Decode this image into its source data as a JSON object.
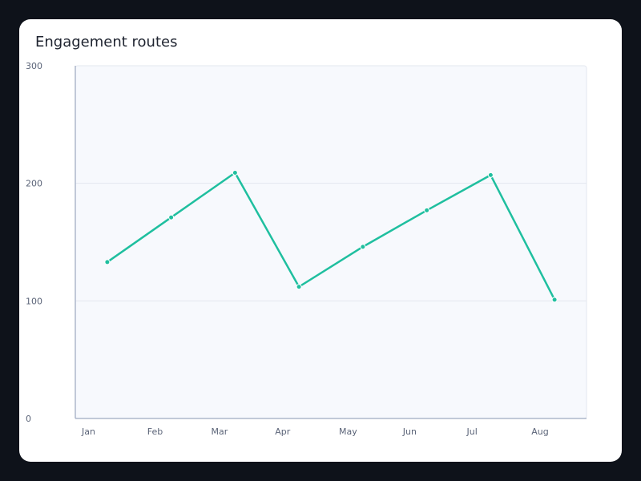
{
  "chart_data": {
    "type": "line",
    "title": "Engagement routes",
    "xlabel": "",
    "ylabel": "",
    "categories": [
      "Jan",
      "Feb",
      "Mar",
      "Apr",
      "May",
      "Jun",
      "Jul",
      "Aug"
    ],
    "series": [
      {
        "values": [
          133,
          171,
          209,
          112,
          146,
          177,
          207,
          101
        ]
      }
    ],
    "ylim": [
      0,
      300
    ],
    "yticks": [
      0,
      100,
      200,
      300
    ],
    "grid": true,
    "legend": "none",
    "colors": {
      "line": "#1fbf9f",
      "plot_bg": "#f7f9fd",
      "grid": "#e3e7ef",
      "axis": "#aeb8cc"
    }
  }
}
